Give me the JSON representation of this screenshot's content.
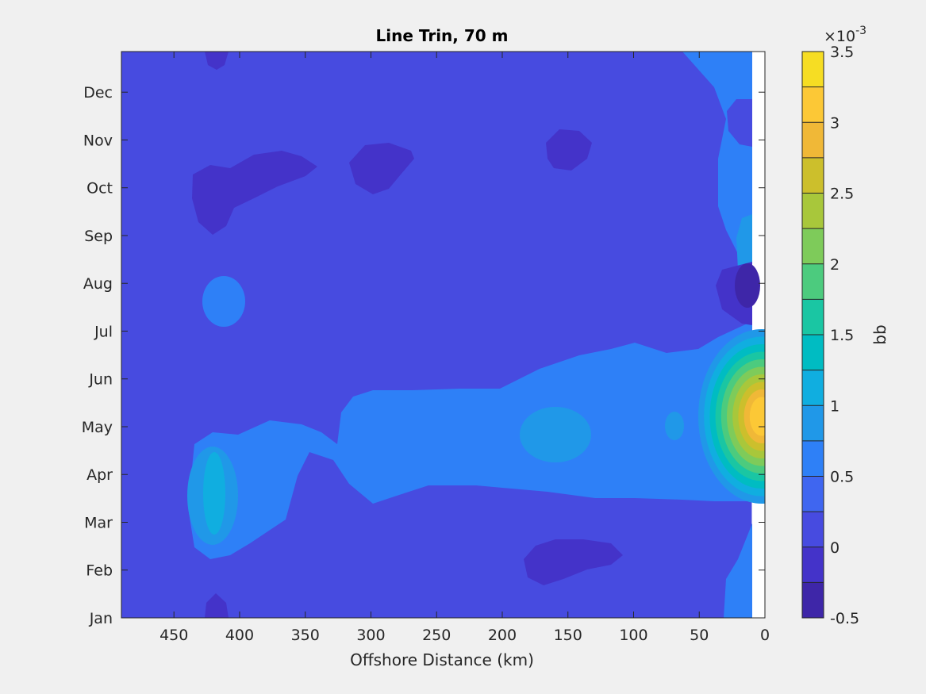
{
  "chart_data": {
    "type": "heatmap",
    "subtype": "filled-contour",
    "title": "Line Trin, 70 m",
    "xlabel": "Offshore Distance (km)",
    "ylabel": "",
    "x_axis_reversed": true,
    "xlim": [
      0,
      490
    ],
    "x_ticks": [
      450,
      400,
      350,
      300,
      250,
      200,
      150,
      100,
      50,
      0
    ],
    "ylim": [
      1,
      12.85
    ],
    "y_ticks": [
      {
        "label": "Jan",
        "value": 1
      },
      {
        "label": "Feb",
        "value": 2
      },
      {
        "label": "Mar",
        "value": 3
      },
      {
        "label": "Apr",
        "value": 4
      },
      {
        "label": "May",
        "value": 5
      },
      {
        "label": "Jun",
        "value": 6
      },
      {
        "label": "Jul",
        "value": 7
      },
      {
        "label": "Aug",
        "value": 8
      },
      {
        "label": "Sep",
        "value": 9
      },
      {
        "label": "Oct",
        "value": 10
      },
      {
        "label": "Nov",
        "value": 11
      },
      {
        "label": "Dec",
        "value": 12
      }
    ],
    "data_coverage_x": [
      10,
      490
    ],
    "background_level": 0.00025,
    "colorbar": {
      "label": "bb",
      "exponent_label": "×10",
      "exponent_power": "-3",
      "range": [
        -0.5,
        3.5
      ],
      "levels": [
        -0.5,
        -0.25,
        0,
        0.25,
        0.5,
        0.75,
        1,
        1.25,
        1.5,
        1.75,
        2,
        2.25,
        2.5,
        2.75,
        3,
        3.25,
        3.5
      ],
      "tick_labels": [
        "-0.5",
        "0",
        "0.5",
        "1",
        "1.5",
        "2",
        "2.5",
        "3",
        "3.5"
      ],
      "tick_values": [
        -0.5,
        0,
        0.5,
        1,
        1.5,
        2,
        2.5,
        3,
        3.5
      ],
      "colors": [
        "#3e26a8",
        "#4433c9",
        "#474be0",
        "#3f66f0",
        "#2e80f7",
        "#2098e8",
        "#10aee0",
        "#00bcc2",
        "#1ac6a3",
        "#4ccb7e",
        "#7ecb5a",
        "#a8c73b",
        "#ccbf2c",
        "#f0b837",
        "#fcc836",
        "#f6dd23"
      ]
    },
    "features": [
      {
        "name": "nearshore spring maximum",
        "x_km": 12,
        "month": 5.2,
        "peak_value": 3.2
      },
      {
        "name": "nearshore winter band",
        "x_km": 20,
        "month": 1.5,
        "peak_value": 0.6
      },
      {
        "name": "nearshore autumn band",
        "x_km": 20,
        "month": 10,
        "peak_value": 0.5
      },
      {
        "name": "nearshore summer minimum",
        "x_km": 15,
        "month": 7.9,
        "peak_value": -0.45
      },
      {
        "name": "offshore spring band",
        "x_km": 200,
        "month": 5,
        "peak_value": 0.5
      },
      {
        "name": "offshore spring maximum",
        "x_km": 415,
        "month": 3.9,
        "peak_value": 1.05
      },
      {
        "name": "minimum near 150 km Feb",
        "x_km": 140,
        "month": 2.2,
        "peak_value": -0.2
      },
      {
        "name": "minimum near 420 km Oct",
        "x_km": 400,
        "month": 10,
        "peak_value": -0.2
      },
      {
        "name": "minimum near 290 km Oct",
        "x_km": 290,
        "month": 10.5,
        "peak_value": -0.2
      },
      {
        "name": "minimum near 150 km Nov",
        "x_km": 150,
        "month": 11,
        "peak_value": -0.2
      },
      {
        "name": "local maximum near 415 km Aug",
        "x_km": 415,
        "month": 8,
        "peak_value": 0.5
      }
    ]
  }
}
